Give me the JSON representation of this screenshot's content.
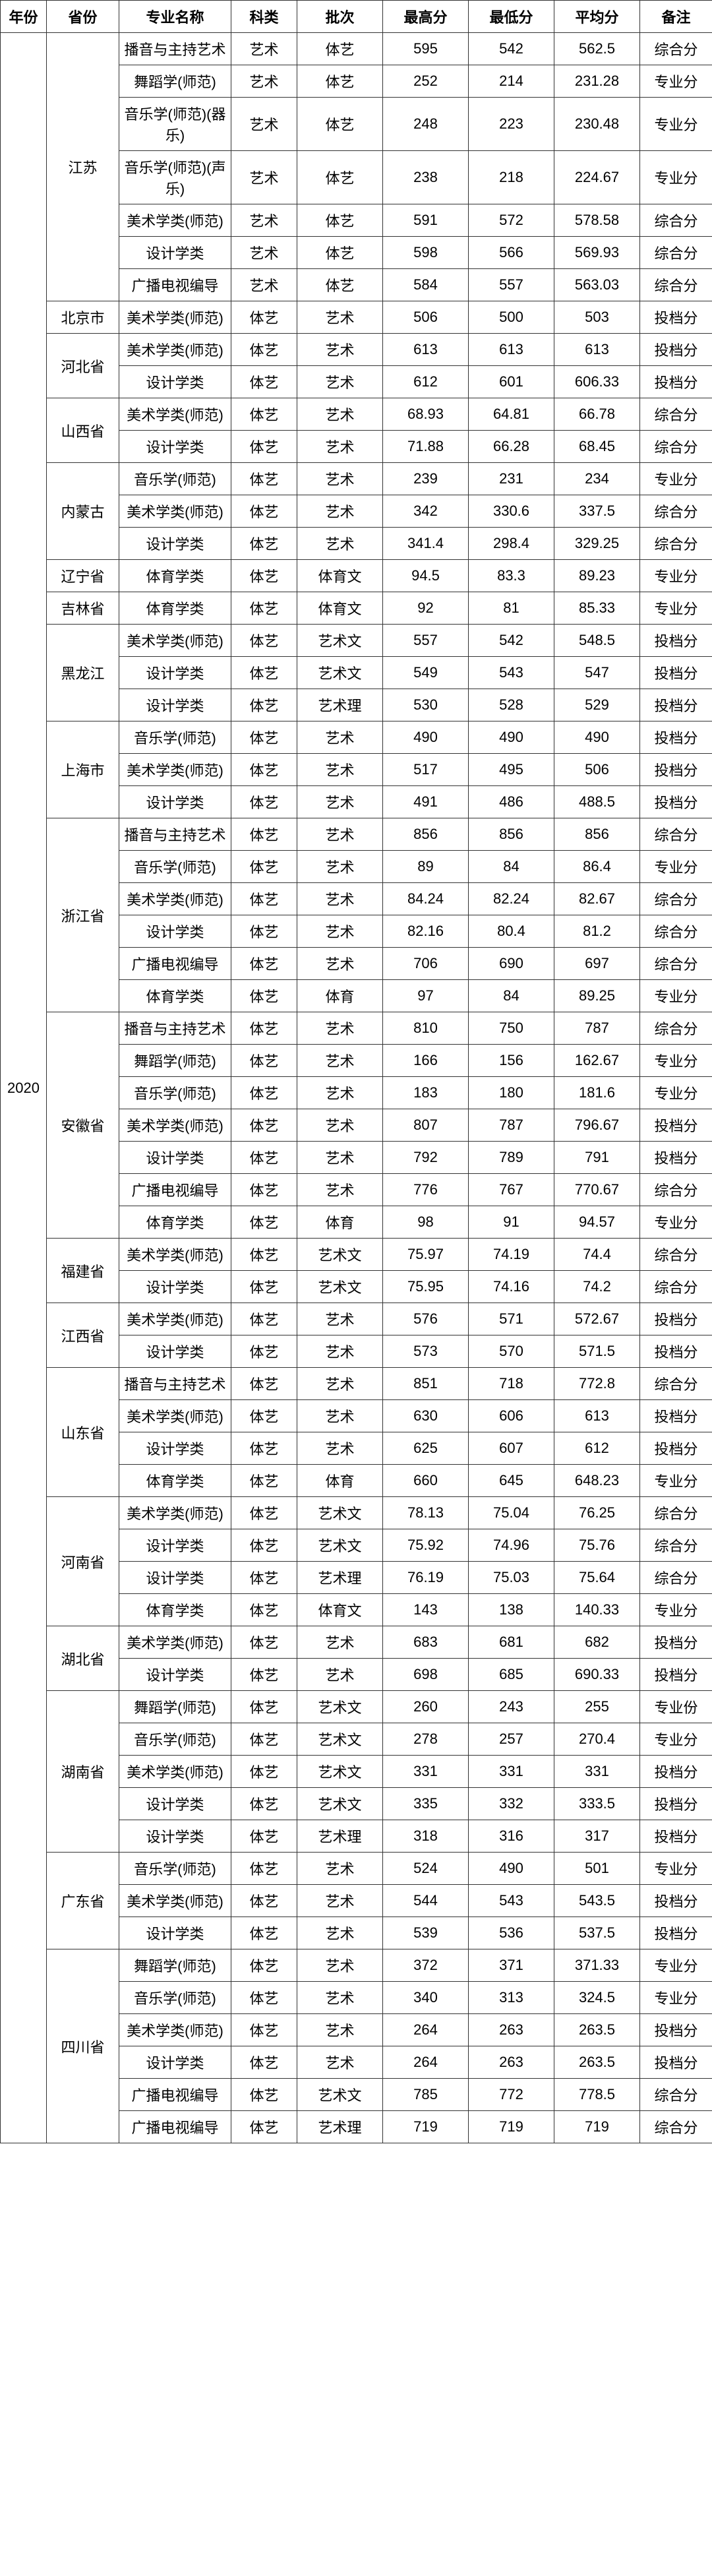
{
  "columns": [
    "年份",
    "省份",
    "专业名称",
    "科类",
    "批次",
    "最高分",
    "最低分",
    "平均分",
    "备注"
  ],
  "year": "2020",
  "provinces": [
    {
      "name": "江苏",
      "rows": [
        {
          "major": "播音与主持艺术",
          "subj": "艺术",
          "batch": "体艺",
          "max": "595",
          "min": "542",
          "avg": "562.5",
          "note": "综合分"
        },
        {
          "major": "舞蹈学(师范)",
          "subj": "艺术",
          "batch": "体艺",
          "max": "252",
          "min": "214",
          "avg": "231.28",
          "note": "专业分"
        },
        {
          "major": "音乐学(师范)(器乐)",
          "subj": "艺术",
          "batch": "体艺",
          "max": "248",
          "min": "223",
          "avg": "230.48",
          "note": "专业分"
        },
        {
          "major": "音乐学(师范)(声乐)",
          "subj": "艺术",
          "batch": "体艺",
          "max": "238",
          "min": "218",
          "avg": "224.67",
          "note": "专业分"
        },
        {
          "major": "美术学类(师范)",
          "subj": "艺术",
          "batch": "体艺",
          "max": "591",
          "min": "572",
          "avg": "578.58",
          "note": "综合分"
        },
        {
          "major": "设计学类",
          "subj": "艺术",
          "batch": "体艺",
          "max": "598",
          "min": "566",
          "avg": "569.93",
          "note": "综合分"
        },
        {
          "major": "广播电视编导",
          "subj": "艺术",
          "batch": "体艺",
          "max": "584",
          "min": "557",
          "avg": "563.03",
          "note": "综合分"
        }
      ]
    },
    {
      "name": "北京市",
      "rows": [
        {
          "major": "美术学类(师范)",
          "subj": "体艺",
          "batch": "艺术",
          "max": "506",
          "min": "500",
          "avg": "503",
          "note": "投档分"
        }
      ]
    },
    {
      "name": "河北省",
      "rows": [
        {
          "major": "美术学类(师范)",
          "subj": "体艺",
          "batch": "艺术",
          "max": "613",
          "min": "613",
          "avg": "613",
          "note": "投档分"
        },
        {
          "major": "设计学类",
          "subj": "体艺",
          "batch": "艺术",
          "max": "612",
          "min": "601",
          "avg": "606.33",
          "note": "投档分"
        }
      ]
    },
    {
      "name": "山西省",
      "rows": [
        {
          "major": "美术学类(师范)",
          "subj": "体艺",
          "batch": "艺术",
          "max": "68.93",
          "min": "64.81",
          "avg": "66.78",
          "note": "综合分"
        },
        {
          "major": "设计学类",
          "subj": "体艺",
          "batch": "艺术",
          "max": "71.88",
          "min": "66.28",
          "avg": "68.45",
          "note": "综合分"
        }
      ]
    },
    {
      "name": "内蒙古",
      "rows": [
        {
          "major": "音乐学(师范)",
          "subj": "体艺",
          "batch": "艺术",
          "max": "239",
          "min": "231",
          "avg": "234",
          "note": "专业分"
        },
        {
          "major": "美术学类(师范)",
          "subj": "体艺",
          "batch": "艺术",
          "max": "342",
          "min": "330.6",
          "avg": "337.5",
          "note": "综合分"
        },
        {
          "major": "设计学类",
          "subj": "体艺",
          "batch": "艺术",
          "max": "341.4",
          "min": "298.4",
          "avg": "329.25",
          "note": "综合分"
        }
      ]
    },
    {
      "name": "辽宁省",
      "rows": [
        {
          "major": "体育学类",
          "subj": "体艺",
          "batch": "体育文",
          "max": "94.5",
          "min": "83.3",
          "avg": "89.23",
          "note": "专业分"
        }
      ]
    },
    {
      "name": "吉林省",
      "rows": [
        {
          "major": "体育学类",
          "subj": "体艺",
          "batch": "体育文",
          "max": "92",
          "min": "81",
          "avg": "85.33",
          "note": "专业分"
        }
      ]
    },
    {
      "name": "黑龙江",
      "rows": [
        {
          "major": "美术学类(师范)",
          "subj": "体艺",
          "batch": "艺术文",
          "max": "557",
          "min": "542",
          "avg": "548.5",
          "note": "投档分"
        },
        {
          "major": "设计学类",
          "subj": "体艺",
          "batch": "艺术文",
          "max": "549",
          "min": "543",
          "avg": "547",
          "note": "投档分"
        },
        {
          "major": "设计学类",
          "subj": "体艺",
          "batch": "艺术理",
          "max": "530",
          "min": "528",
          "avg": "529",
          "note": "投档分"
        }
      ]
    },
    {
      "name": "上海市",
      "rows": [
        {
          "major": "音乐学(师范)",
          "subj": "体艺",
          "batch": "艺术",
          "max": "490",
          "min": "490",
          "avg": "490",
          "note": "投档分"
        },
        {
          "major": "美术学类(师范)",
          "subj": "体艺",
          "batch": "艺术",
          "max": "517",
          "min": "495",
          "avg": "506",
          "note": "投档分"
        },
        {
          "major": "设计学类",
          "subj": "体艺",
          "batch": "艺术",
          "max": "491",
          "min": "486",
          "avg": "488.5",
          "note": "投档分"
        }
      ]
    },
    {
      "name": "浙江省",
      "rows": [
        {
          "major": "播音与主持艺术",
          "subj": "体艺",
          "batch": "艺术",
          "max": "856",
          "min": "856",
          "avg": "856",
          "note": "综合分"
        },
        {
          "major": "音乐学(师范)",
          "subj": "体艺",
          "batch": "艺术",
          "max": "89",
          "min": "84",
          "avg": "86.4",
          "note": "专业分"
        },
        {
          "major": "美术学类(师范)",
          "subj": "体艺",
          "batch": "艺术",
          "max": "84.24",
          "min": "82.24",
          "avg": "82.67",
          "note": "综合分"
        },
        {
          "major": "设计学类",
          "subj": "体艺",
          "batch": "艺术",
          "max": "82.16",
          "min": "80.4",
          "avg": "81.2",
          "note": "综合分"
        },
        {
          "major": "广播电视编导",
          "subj": "体艺",
          "batch": "艺术",
          "max": "706",
          "min": "690",
          "avg": "697",
          "note": "综合分"
        },
        {
          "major": "体育学类",
          "subj": "体艺",
          "batch": "体育",
          "max": "97",
          "min": "84",
          "avg": "89.25",
          "note": "专业分"
        }
      ]
    },
    {
      "name": "安徽省",
      "rows": [
        {
          "major": "播音与主持艺术",
          "subj": "体艺",
          "batch": "艺术",
          "max": "810",
          "min": "750",
          "avg": "787",
          "note": "综合分"
        },
        {
          "major": "舞蹈学(师范)",
          "subj": "体艺",
          "batch": "艺术",
          "max": "166",
          "min": "156",
          "avg": "162.67",
          "note": "专业分"
        },
        {
          "major": "音乐学(师范)",
          "subj": "体艺",
          "batch": "艺术",
          "max": "183",
          "min": "180",
          "avg": "181.6",
          "note": "专业分"
        },
        {
          "major": "美术学类(师范)",
          "subj": "体艺",
          "batch": "艺术",
          "max": "807",
          "min": "787",
          "avg": "796.67",
          "note": "投档分"
        },
        {
          "major": "设计学类",
          "subj": "体艺",
          "batch": "艺术",
          "max": "792",
          "min": "789",
          "avg": "791",
          "note": "投档分"
        },
        {
          "major": "广播电视编导",
          "subj": "体艺",
          "batch": "艺术",
          "max": "776",
          "min": "767",
          "avg": "770.67",
          "note": "综合分"
        },
        {
          "major": "体育学类",
          "subj": "体艺",
          "batch": "体育",
          "max": "98",
          "min": "91",
          "avg": "94.57",
          "note": "专业分"
        }
      ]
    },
    {
      "name": "福建省",
      "rows": [
        {
          "major": "美术学类(师范)",
          "subj": "体艺",
          "batch": "艺术文",
          "max": "75.97",
          "min": "74.19",
          "avg": "74.4",
          "note": "综合分"
        },
        {
          "major": "设计学类",
          "subj": "体艺",
          "batch": "艺术文",
          "max": "75.95",
          "min": "74.16",
          "avg": "74.2",
          "note": "综合分"
        }
      ]
    },
    {
      "name": "江西省",
      "rows": [
        {
          "major": "美术学类(师范)",
          "subj": "体艺",
          "batch": "艺术",
          "max": "576",
          "min": "571",
          "avg": "572.67",
          "note": "投档分"
        },
        {
          "major": "设计学类",
          "subj": "体艺",
          "batch": "艺术",
          "max": "573",
          "min": "570",
          "avg": "571.5",
          "note": "投档分"
        }
      ]
    },
    {
      "name": "山东省",
      "rows": [
        {
          "major": "播音与主持艺术",
          "subj": "体艺",
          "batch": "艺术",
          "max": "851",
          "min": "718",
          "avg": "772.8",
          "note": "综合分"
        },
        {
          "major": "美术学类(师范)",
          "subj": "体艺",
          "batch": "艺术",
          "max": "630",
          "min": "606",
          "avg": "613",
          "note": "投档分"
        },
        {
          "major": "设计学类",
          "subj": "体艺",
          "batch": "艺术",
          "max": "625",
          "min": "607",
          "avg": "612",
          "note": "投档分"
        },
        {
          "major": "体育学类",
          "subj": "体艺",
          "batch": "体育",
          "max": "660",
          "min": "645",
          "avg": "648.23",
          "note": "专业分"
        }
      ]
    },
    {
      "name": "河南省",
      "rows": [
        {
          "major": "美术学类(师范)",
          "subj": "体艺",
          "batch": "艺术文",
          "max": "78.13",
          "min": "75.04",
          "avg": "76.25",
          "note": "综合分"
        },
        {
          "major": "设计学类",
          "subj": "体艺",
          "batch": "艺术文",
          "max": "75.92",
          "min": "74.96",
          "avg": "75.76",
          "note": "综合分"
        },
        {
          "major": "设计学类",
          "subj": "体艺",
          "batch": "艺术理",
          "max": "76.19",
          "min": "75.03",
          "avg": "75.64",
          "note": "综合分"
        },
        {
          "major": "体育学类",
          "subj": "体艺",
          "batch": "体育文",
          "max": "143",
          "min": "138",
          "avg": "140.33",
          "note": "专业分"
        }
      ]
    },
    {
      "name": "湖北省",
      "rows": [
        {
          "major": "美术学类(师范)",
          "subj": "体艺",
          "batch": "艺术",
          "max": "683",
          "min": "681",
          "avg": "682",
          "note": "投档分"
        },
        {
          "major": "设计学类",
          "subj": "体艺",
          "batch": "艺术",
          "max": "698",
          "min": "685",
          "avg": "690.33",
          "note": "投档分"
        }
      ]
    },
    {
      "name": "湖南省",
      "rows": [
        {
          "major": "舞蹈学(师范)",
          "subj": "体艺",
          "batch": "艺术文",
          "max": "260",
          "min": "243",
          "avg": "255",
          "note": "专业份"
        },
        {
          "major": "音乐学(师范)",
          "subj": "体艺",
          "batch": "艺术文",
          "max": "278",
          "min": "257",
          "avg": "270.4",
          "note": "专业分"
        },
        {
          "major": "美术学类(师范)",
          "subj": "体艺",
          "batch": "艺术文",
          "max": "331",
          "min": "331",
          "avg": "331",
          "note": "投档分"
        },
        {
          "major": "设计学类",
          "subj": "体艺",
          "batch": "艺术文",
          "max": "335",
          "min": "332",
          "avg": "333.5",
          "note": "投档分"
        },
        {
          "major": "设计学类",
          "subj": "体艺",
          "batch": "艺术理",
          "max": "318",
          "min": "316",
          "avg": "317",
          "note": "投档分"
        }
      ]
    },
    {
      "name": "广东省",
      "rows": [
        {
          "major": "音乐学(师范)",
          "subj": "体艺",
          "batch": "艺术",
          "max": "524",
          "min": "490",
          "avg": "501",
          "note": "专业分"
        },
        {
          "major": "美术学类(师范)",
          "subj": "体艺",
          "batch": "艺术",
          "max": "544",
          "min": "543",
          "avg": "543.5",
          "note": "投档分"
        },
        {
          "major": "设计学类",
          "subj": "体艺",
          "batch": "艺术",
          "max": "539",
          "min": "536",
          "avg": "537.5",
          "note": "投档分"
        }
      ]
    },
    {
      "name": "四川省",
      "rows": [
        {
          "major": "舞蹈学(师范)",
          "subj": "体艺",
          "batch": "艺术",
          "max": "372",
          "min": "371",
          "avg": "371.33",
          "note": "专业分"
        },
        {
          "major": "音乐学(师范)",
          "subj": "体艺",
          "batch": "艺术",
          "max": "340",
          "min": "313",
          "avg": "324.5",
          "note": "专业分"
        },
        {
          "major": "美术学类(师范)",
          "subj": "体艺",
          "batch": "艺术",
          "max": "264",
          "min": "263",
          "avg": "263.5",
          "note": "投档分"
        },
        {
          "major": "设计学类",
          "subj": "体艺",
          "batch": "艺术",
          "max": "264",
          "min": "263",
          "avg": "263.5",
          "note": "投档分"
        },
        {
          "major": "广播电视编导",
          "subj": "体艺",
          "batch": "艺术文",
          "max": "785",
          "min": "772",
          "avg": "778.5",
          "note": "综合分"
        },
        {
          "major": "广播电视编导",
          "subj": "体艺",
          "batch": "艺术理",
          "max": "719",
          "min": "719",
          "avg": "719",
          "note": "综合分"
        }
      ]
    }
  ]
}
